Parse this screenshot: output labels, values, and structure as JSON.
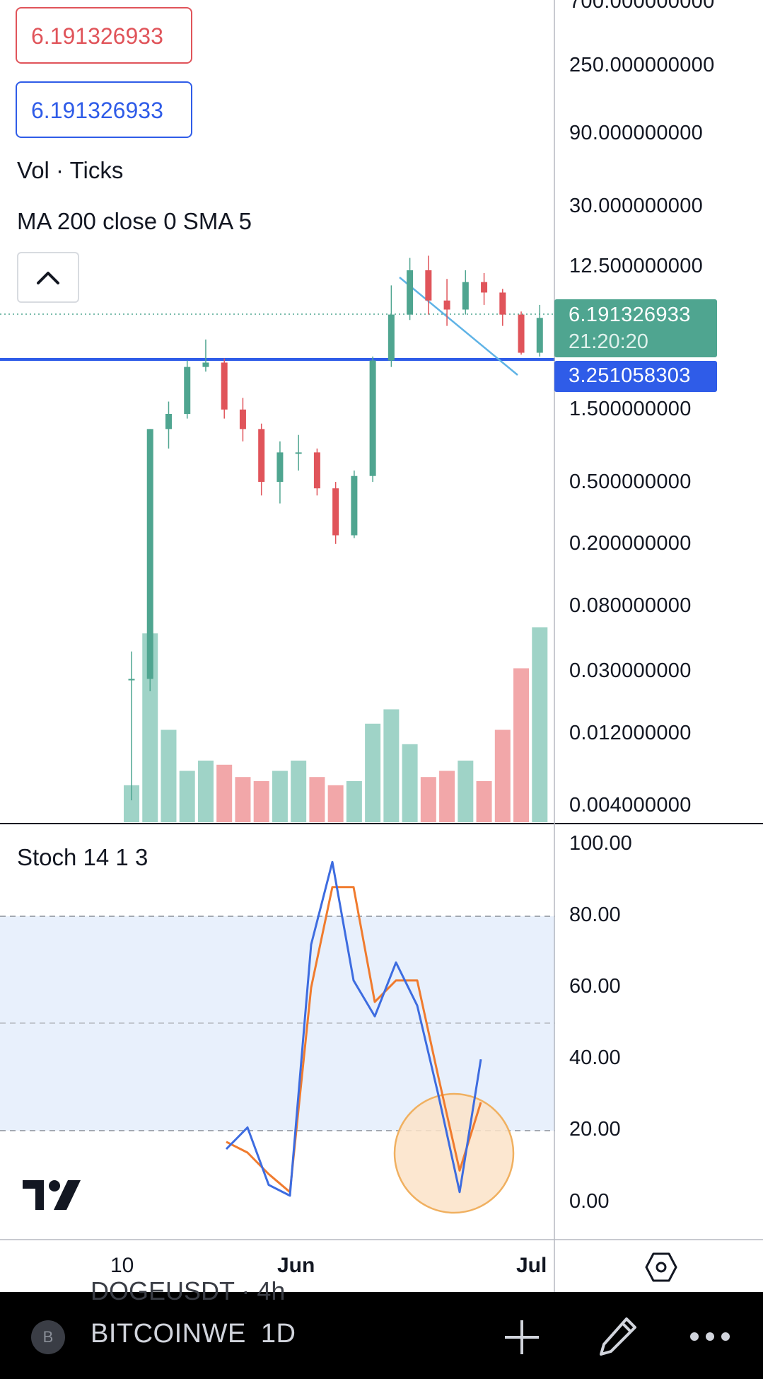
{
  "ohlc": {
    "box_red": "6.191326933",
    "box_blue": "6.191326933"
  },
  "legends": {
    "volume": "Vol · Ticks",
    "ma": "MA 200 close 0 SMA 5",
    "stoch": "Stoch 14 1 3"
  },
  "price_axis": {
    "top_partial": "700.000000000",
    "labels": [
      "250.000000000",
      "90.000000000",
      "30.000000000",
      "12.500000000",
      "1.500000000",
      "0.500000000",
      "0.200000000",
      "0.080000000",
      "0.030000000",
      "0.012000000",
      "0.004000000"
    ],
    "last_price": "6.191326933",
    "countdown": "21:20:20",
    "line_price": "3.251058303",
    "last_price_color": "#4fa590",
    "line_color": "#2f5ce8"
  },
  "stoch_axis": {
    "labels": [
      "100.00",
      "80.00",
      "60.00",
      "40.00",
      "20.00",
      "0.00"
    ]
  },
  "time_axis": {
    "labels": [
      "10",
      "Jun",
      "Jul"
    ]
  },
  "bottom_bar": {
    "badge": "B",
    "symbol": "BITCOINWE",
    "interval": "1D",
    "ghost_text": "DOGEUSDT · 4h"
  },
  "colors": {
    "up": "#4fa590",
    "down": "#e0545a",
    "vol_up": "#9fd3c7",
    "vol_down": "#f2a7a9",
    "stoch_k": "#3d6ce0",
    "stoch_d": "#f07b2e",
    "stoch_band": "#e8f0fc",
    "circle": "#f6c58a"
  },
  "chart_data": {
    "type": "candlestick",
    "scale": "log",
    "candles": [
      {
        "o": 0.03,
        "h": 0.045,
        "l": 0.005,
        "c": 0.03
      },
      {
        "o": 0.03,
        "h": 1.2,
        "l": 0.025,
        "c": 1.2
      },
      {
        "o": 1.2,
        "h": 1.8,
        "l": 0.9,
        "c": 1.5
      },
      {
        "o": 1.5,
        "h": 3.3,
        "l": 1.4,
        "c": 3.0
      },
      {
        "o": 3.0,
        "h": 4.5,
        "l": 2.8,
        "c": 3.2
      },
      {
        "o": 3.2,
        "h": 3.4,
        "l": 1.4,
        "c": 1.6
      },
      {
        "o": 1.6,
        "h": 1.9,
        "l": 1.0,
        "c": 1.2
      },
      {
        "o": 1.2,
        "h": 1.3,
        "l": 0.45,
        "c": 0.55
      },
      {
        "o": 0.55,
        "h": 1.0,
        "l": 0.4,
        "c": 0.85
      },
      {
        "o": 0.85,
        "h": 1.1,
        "l": 0.65,
        "c": 0.85
      },
      {
        "o": 0.85,
        "h": 0.9,
        "l": 0.45,
        "c": 0.5
      },
      {
        "o": 0.5,
        "h": 0.55,
        "l": 0.22,
        "c": 0.25
      },
      {
        "o": 0.25,
        "h": 0.65,
        "l": 0.24,
        "c": 0.6
      },
      {
        "o": 0.6,
        "h": 3.5,
        "l": 0.55,
        "c": 3.3
      },
      {
        "o": 3.3,
        "h": 10.0,
        "l": 3.0,
        "c": 6.5
      },
      {
        "o": 6.5,
        "h": 15.0,
        "l": 6.0,
        "c": 12.5
      },
      {
        "o": 12.5,
        "h": 15.5,
        "l": 6.5,
        "c": 8.0
      },
      {
        "o": 8.0,
        "h": 11.0,
        "l": 5.5,
        "c": 7.0
      },
      {
        "o": 7.0,
        "h": 12.5,
        "l": 6.5,
        "c": 10.5
      },
      {
        "o": 10.5,
        "h": 12.0,
        "l": 7.5,
        "c": 9.0
      },
      {
        "o": 9.0,
        "h": 9.5,
        "l": 5.5,
        "c": 6.5
      },
      {
        "o": 6.5,
        "h": 6.8,
        "l": 3.6,
        "c": 3.7
      },
      {
        "o": 3.7,
        "h": 7.5,
        "l": 3.5,
        "c": 6.19
      }
    ],
    "volume_level": [
      0.18,
      0.92,
      0.45,
      0.25,
      0.3,
      0.28,
      0.22,
      0.2,
      0.25,
      0.3,
      0.22,
      0.18,
      0.2,
      0.48,
      0.55,
      0.38,
      0.22,
      0.25,
      0.3,
      0.2,
      0.45,
      0.75,
      0.95
    ],
    "stoch_k": [
      15,
      21,
      5,
      2,
      72,
      95,
      62,
      52,
      67,
      55,
      30,
      3,
      40
    ],
    "stoch_d": [
      17,
      14,
      8,
      3,
      60,
      88,
      88,
      56,
      62,
      62,
      35,
      9,
      28
    ]
  }
}
